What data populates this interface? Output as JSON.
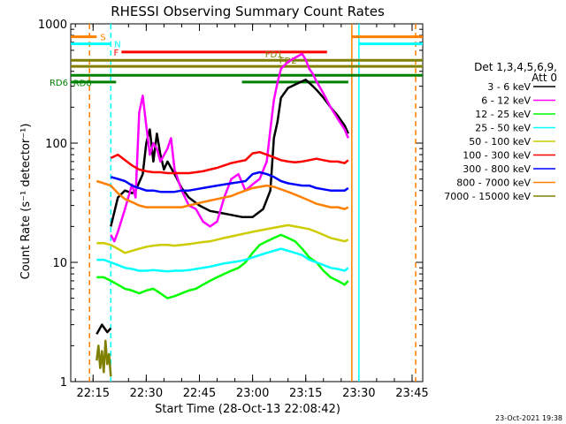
{
  "chart_data": {
    "type": "line",
    "title": "RHESSI Observing Summary Count Rates",
    "xlabel": "Start Time (28-Oct-13 22:08:42)",
    "ylabel": "Count Rate (s⁻¹ detector⁻¹)",
    "yscale": "log",
    "ylim": [
      1,
      1000
    ],
    "xlim": [
      "22:08:42",
      "23:48:00"
    ],
    "x_ticks": [
      "22:15",
      "22:30",
      "22:45",
      "23:00",
      "23:15",
      "23:30",
      "23:45"
    ],
    "y_ticks": [
      "1",
      "10",
      "100",
      "1000"
    ],
    "date_stamp": "23-Oct-2021 19:38",
    "legend": {
      "placement": "right",
      "header_line1": "Det 1,3,4,5,6,9,",
      "header_line2": "Att 0",
      "entries": [
        {
          "label": "3 - 6 keV",
          "color": "#000000"
        },
        {
          "label": "6 - 12 keV",
          "color": "#ff00ff"
        },
        {
          "label": "12 - 25 keV",
          "color": "#00ff00"
        },
        {
          "label": "25 - 50 keV",
          "color": "#00ffff"
        },
        {
          "label": "50 - 100 keV",
          "color": "#cccc00"
        },
        {
          "label": "100 - 300 keV",
          "color": "#ff0000"
        },
        {
          "label": "300 - 800 keV",
          "color": "#0000ff"
        },
        {
          "label": "800 - 7000 keV",
          "color": "#ff8000"
        },
        {
          "label": "7000 - 15000 keV",
          "color": "#808000"
        }
      ]
    },
    "flags": [
      {
        "label": "S",
        "color": "#ff8000",
        "start": "22:08:42",
        "end": "22:16:00",
        "level": 780,
        "label_side": "right"
      },
      {
        "label": "S",
        "color": "#ff8000",
        "start": "23:28:00",
        "end": "23:48:00",
        "level": 780,
        "label_side": "none"
      },
      {
        "label": "N",
        "color": "#00ffff",
        "start": "22:08:42",
        "end": "22:20:00",
        "level": 680,
        "label_side": "right"
      },
      {
        "label": "N",
        "color": "#00ffff",
        "start": "23:30:00",
        "end": "23:48:00",
        "level": 680,
        "label_side": "none"
      },
      {
        "label": "F",
        "color": "#ff0000",
        "start": "22:23:00",
        "end": "23:21:00",
        "level": 580,
        "label_side": "left"
      },
      {
        "label": "FD1",
        "color": "#808000",
        "start": "22:08:42",
        "end": "23:48:00",
        "level": 495,
        "label_side": "above",
        "label_at": "23:06:00"
      },
      {
        "label": "FD2",
        "color": "#808000",
        "start": "22:08:42",
        "end": "23:48:00",
        "level": 440,
        "label_side": "above",
        "label_at": "23:10:00"
      },
      {
        "label": "RD0",
        "color": "#008000",
        "start": "22:08:42",
        "end": "23:48:00",
        "level": 370,
        "label_side": "below",
        "label_at": "22:12:00"
      },
      {
        "label": "RD6",
        "color": "#008000",
        "start": "22:08:42",
        "end": "22:21:30",
        "level": 325,
        "label_side": "left"
      },
      {
        "label": "RD6",
        "color": "#008000",
        "start": "22:57:00",
        "end": "23:27:00",
        "level": 325,
        "label_side": "none"
      }
    ],
    "vlines": [
      {
        "time": "22:14:00",
        "color": "#ff8000",
        "style": "dashed"
      },
      {
        "time": "22:20:00",
        "color": "#00ffff",
        "style": "dashed"
      },
      {
        "time": "23:28:00",
        "color": "#ff8000",
        "style": "solid"
      },
      {
        "time": "23:30:00",
        "color": "#00ffff",
        "style": "solid"
      },
      {
        "time": "23:46:00",
        "color": "#ff8000",
        "style": "dashed"
      }
    ],
    "series": [
      {
        "name": "3 - 6 keV",
        "color": "#000000",
        "segments": [
          {
            "x": [
              "22:16:00",
              "22:17:30",
              "22:19:00",
              "22:20:00"
            ],
            "y": [
              2.5,
              3.0,
              2.6,
              2.8
            ]
          },
          {
            "x": [
              "22:20:00",
              "22:22:00",
              "22:24:00",
              "22:26:00",
              "22:27:00",
              "22:29:00",
              "22:30:00",
              "22:31:00",
              "22:32:00",
              "22:33:00",
              "22:34:00",
              "22:35:00",
              "22:36:00",
              "22:38:00",
              "22:40:00",
              "22:42:00",
              "22:45:00",
              "22:48:00",
              "22:51:00",
              "22:54:00",
              "22:57:00",
              "23:00:00",
              "23:03:00",
              "23:05:00",
              "23:06:00",
              "23:07:00",
              "23:08:00",
              "23:10:00",
              "23:12:00",
              "23:14:00",
              "23:15:00",
              "23:16:00",
              "23:17:00",
              "23:18:00",
              "23:20:00",
              "23:22:00",
              "23:24:00",
              "23:26:00",
              "23:27:00"
            ],
            "y": [
              20,
              35,
              40,
              38,
              40,
              55,
              100,
              130,
              70,
              120,
              80,
              60,
              70,
              55,
              42,
              35,
              30,
              27,
              26,
              25,
              24,
              24,
              28,
              40,
              110,
              150,
              240,
              290,
              310,
              330,
              340,
              320,
              300,
              280,
              240,
              200,
              170,
              140,
              120
            ]
          }
        ]
      },
      {
        "name": "6 - 12 keV",
        "color": "#ff00ff",
        "segments": [
          {
            "x": [
              "22:20:00",
              "22:21:00",
              "22:22:00",
              "22:24:00",
              "22:26:00",
              "22:27:00",
              "22:28:00",
              "22:29:00",
              "22:30:00",
              "22:31:00",
              "22:32:00",
              "22:33:00",
              "22:34:00",
              "22:36:00",
              "22:37:00",
              "22:38:00",
              "22:40:00",
              "22:42:00",
              "22:44:00",
              "22:46:00",
              "22:48:00",
              "22:50:00",
              "22:52:00",
              "22:54:00",
              "22:56:00",
              "22:58:00",
              "23:00:00",
              "23:02:00",
              "23:04:00",
              "23:05:00",
              "23:06:00",
              "23:07:00",
              "23:08:00",
              "23:10:00",
              "23:12:00",
              "23:14:00",
              "23:15:00",
              "23:16:00",
              "23:17:00",
              "23:18:00",
              "23:20:00",
              "23:22:00",
              "23:24:00",
              "23:26:00",
              "23:27:00"
            ],
            "y": [
              17,
              15,
              18,
              28,
              45,
              35,
              180,
              250,
              140,
              80,
              100,
              90,
              70,
              90,
              110,
              60,
              40,
              30,
              28,
              22,
              20,
              22,
              35,
              50,
              55,
              40,
              45,
              50,
              70,
              130,
              230,
              320,
              420,
              480,
              520,
              560,
              500,
              420,
              380,
              330,
              260,
              200,
              160,
              130,
              110
            ]
          }
        ]
      },
      {
        "name": "12 - 25 keV",
        "color": "#00ff00",
        "segments": [
          {
            "x": [
              "22:16:00",
              "22:18:00",
              "22:20:00",
              "22:22:00",
              "22:24:00",
              "22:26:00",
              "22:28:00",
              "22:30:00",
              "22:32:00",
              "22:34:00",
              "22:36:00",
              "22:38:00",
              "22:40:00",
              "22:42:00",
              "22:44:00",
              "22:46:00",
              "22:48:00",
              "22:50:00",
              "22:52:00",
              "22:54:00",
              "22:56:00",
              "22:58:00",
              "23:00:00",
              "23:02:00",
              "23:04:00",
              "23:06:00",
              "23:08:00",
              "23:10:00",
              "23:12:00",
              "23:14:00",
              "23:16:00",
              "23:18:00",
              "23:20:00",
              "23:22:00",
              "23:24:00",
              "23:26:00",
              "23:27:00"
            ],
            "y": [
              7.5,
              7.5,
              7.0,
              6.5,
              6.0,
              5.8,
              5.5,
              5.8,
              6.0,
              5.5,
              5.0,
              5.2,
              5.5,
              5.8,
              6.0,
              6.5,
              7.0,
              7.5,
              8.0,
              8.5,
              9.0,
              10,
              12,
              14,
              15,
              16,
              17,
              16,
              15,
              13,
              11,
              10,
              8.5,
              7.5,
              7.0,
              6.5,
              7.0
            ]
          }
        ]
      },
      {
        "name": "25 - 50 keV",
        "color": "#00ffff",
        "segments": [
          {
            "x": [
              "22:16:00",
              "22:18:00",
              "22:20:00",
              "22:22:00",
              "22:24:00",
              "22:26:00",
              "22:28:00",
              "22:30:00",
              "22:32:00",
              "22:34:00",
              "22:36:00",
              "22:38:00",
              "22:40:00",
              "22:42:00",
              "22:44:00",
              "22:46:00",
              "22:48:00",
              "22:50:00",
              "22:52:00",
              "22:54:00",
              "22:56:00",
              "22:58:00",
              "23:00:00",
              "23:02:00",
              "23:04:00",
              "23:06:00",
              "23:08:00",
              "23:10:00",
              "23:12:00",
              "23:14:00",
              "23:16:00",
              "23:18:00",
              "23:20:00",
              "23:22:00",
              "23:24:00",
              "23:26:00",
              "23:27:00"
            ],
            "y": [
              10.5,
              10.5,
              10.0,
              9.5,
              9.0,
              8.8,
              8.5,
              8.5,
              8.6,
              8.5,
              8.4,
              8.5,
              8.5,
              8.6,
              8.8,
              9.0,
              9.2,
              9.5,
              9.8,
              10,
              10.2,
              10.5,
              11,
              11.5,
              12,
              12.5,
              13,
              12.5,
              12,
              11.5,
              10.5,
              10,
              9.5,
              9.0,
              8.8,
              8.5,
              9.0
            ]
          }
        ]
      },
      {
        "name": "50 - 100 keV",
        "color": "#cccc00",
        "segments": [
          {
            "x": [
              "22:16:00",
              "22:18:00",
              "22:20:00",
              "22:22:00",
              "22:24:00",
              "22:26:00",
              "22:28:00",
              "22:30:00",
              "22:32:00",
              "22:34:00",
              "22:36:00",
              "22:38:00",
              "22:40:00",
              "22:42:00",
              "22:44:00",
              "22:46:00",
              "22:48:00",
              "22:50:00",
              "22:52:00",
              "22:54:00",
              "22:56:00",
              "22:58:00",
              "23:00:00",
              "23:02:00",
              "23:04:00",
              "23:06:00",
              "23:08:00",
              "23:10:00",
              "23:12:00",
              "23:14:00",
              "23:16:00",
              "23:18:00",
              "23:20:00",
              "23:22:00",
              "23:24:00",
              "23:26:00",
              "23:27:00"
            ],
            "y": [
              14.5,
              14.5,
              14,
              13,
              12,
              12.5,
              13,
              13.5,
              13.8,
              14,
              14,
              13.8,
              14,
              14.2,
              14.5,
              14.8,
              15,
              15.5,
              16,
              16.5,
              17,
              17.5,
              18,
              18.5,
              19,
              19.5,
              20,
              20.5,
              20,
              19.5,
              19,
              18,
              17,
              16,
              15.5,
              15,
              15.5
            ]
          }
        ]
      },
      {
        "name": "100 - 300 keV",
        "color": "#ff0000",
        "segments": [
          {
            "x": [
              "22:20:00",
              "22:22:00",
              "22:24:00",
              "22:26:00",
              "22:28:00",
              "22:30:00",
              "22:32:00",
              "22:34:00",
              "22:36:00",
              "22:38:00",
              "22:40:00",
              "22:42:00",
              "22:44:00",
              "22:46:00",
              "22:48:00",
              "22:50:00",
              "22:52:00",
              "22:54:00",
              "22:56:00",
              "22:58:00",
              "23:00:00",
              "23:02:00",
              "23:04:00",
              "23:06:00",
              "23:08:00",
              "23:10:00",
              "23:12:00",
              "23:14:00",
              "23:16:00",
              "23:18:00",
              "23:20:00",
              "23:22:00",
              "23:24:00",
              "23:26:00",
              "23:27:00"
            ],
            "y": [
              75,
              80,
              72,
              65,
              60,
              58,
              57,
              57,
              56,
              56,
              56,
              56,
              57,
              58,
              60,
              62,
              65,
              68,
              70,
              72,
              82,
              84,
              80,
              76,
              72,
              70,
              69,
              70,
              72,
              74,
              72,
              70,
              70,
              68,
              72
            ]
          }
        ]
      },
      {
        "name": "300 - 800 keV",
        "color": "#0000ff",
        "segments": [
          {
            "x": [
              "22:20:00",
              "22:22:00",
              "22:24:00",
              "22:26:00",
              "22:28:00",
              "22:30:00",
              "22:32:00",
              "22:34:00",
              "22:36:00",
              "22:38:00",
              "22:40:00",
              "22:42:00",
              "22:44:00",
              "22:46:00",
              "22:48:00",
              "22:50:00",
              "22:52:00",
              "22:54:00",
              "22:56:00",
              "22:58:00",
              "23:00:00",
              "23:02:00",
              "23:04:00",
              "23:06:00",
              "23:08:00",
              "23:10:00",
              "23:12:00",
              "23:14:00",
              "23:16:00",
              "23:18:00",
              "23:20:00",
              "23:22:00",
              "23:24:00",
              "23:26:00",
              "23:27:00"
            ],
            "y": [
              52,
              50,
              48,
              44,
              42,
              40,
              40,
              39,
              39,
              39,
              40,
              40,
              41,
              42,
              43,
              44,
              45,
              46,
              47,
              48,
              55,
              57,
              55,
              52,
              48,
              46,
              45,
              44,
              44,
              42,
              41,
              40,
              40,
              40,
              42
            ]
          }
        ]
      },
      {
        "name": "800 - 7000 keV",
        "color": "#ff8000",
        "segments": [
          {
            "x": [
              "22:16:00",
              "22:18:00",
              "22:20:00",
              "22:22:00",
              "22:24:00",
              "22:26:00",
              "22:28:00",
              "22:30:00",
              "22:32:00",
              "22:34:00",
              "22:36:00",
              "22:38:00",
              "22:40:00",
              "22:42:00",
              "22:44:00",
              "22:46:00",
              "22:48:00",
              "22:50:00",
              "22:52:00",
              "22:54:00",
              "22:56:00",
              "22:58:00",
              "23:00:00",
              "23:02:00",
              "23:04:00",
              "23:06:00",
              "23:08:00",
              "23:10:00",
              "23:12:00",
              "23:14:00",
              "23:16:00",
              "23:18:00",
              "23:20:00",
              "23:22:00",
              "23:24:00",
              "23:26:00",
              "23:27:00"
            ],
            "y": [
              48,
              46,
              44,
              38,
              34,
              32,
              30,
              29,
              29,
              29,
              29,
              29,
              29,
              30,
              31,
              32,
              33,
              34,
              35,
              36,
              38,
              40,
              42,
              43,
              44,
              43,
              41,
              39,
              37,
              35,
              33,
              31,
              30,
              29,
              29,
              28,
              29
            ]
          }
        ]
      },
      {
        "name": "7000 - 15000 keV",
        "color": "#808000",
        "segments": [
          {
            "x": [
              "22:16:00",
              "22:16:30",
              "22:17:00",
              "22:17:30",
              "22:18:00",
              "22:18:30",
              "22:19:00",
              "22:19:30",
              "22:20:00"
            ],
            "y": [
              1.5,
              2.0,
              1.3,
              1.8,
              1.2,
              2.2,
              1.4,
              1.7,
              1.1
            ]
          }
        ]
      }
    ]
  }
}
